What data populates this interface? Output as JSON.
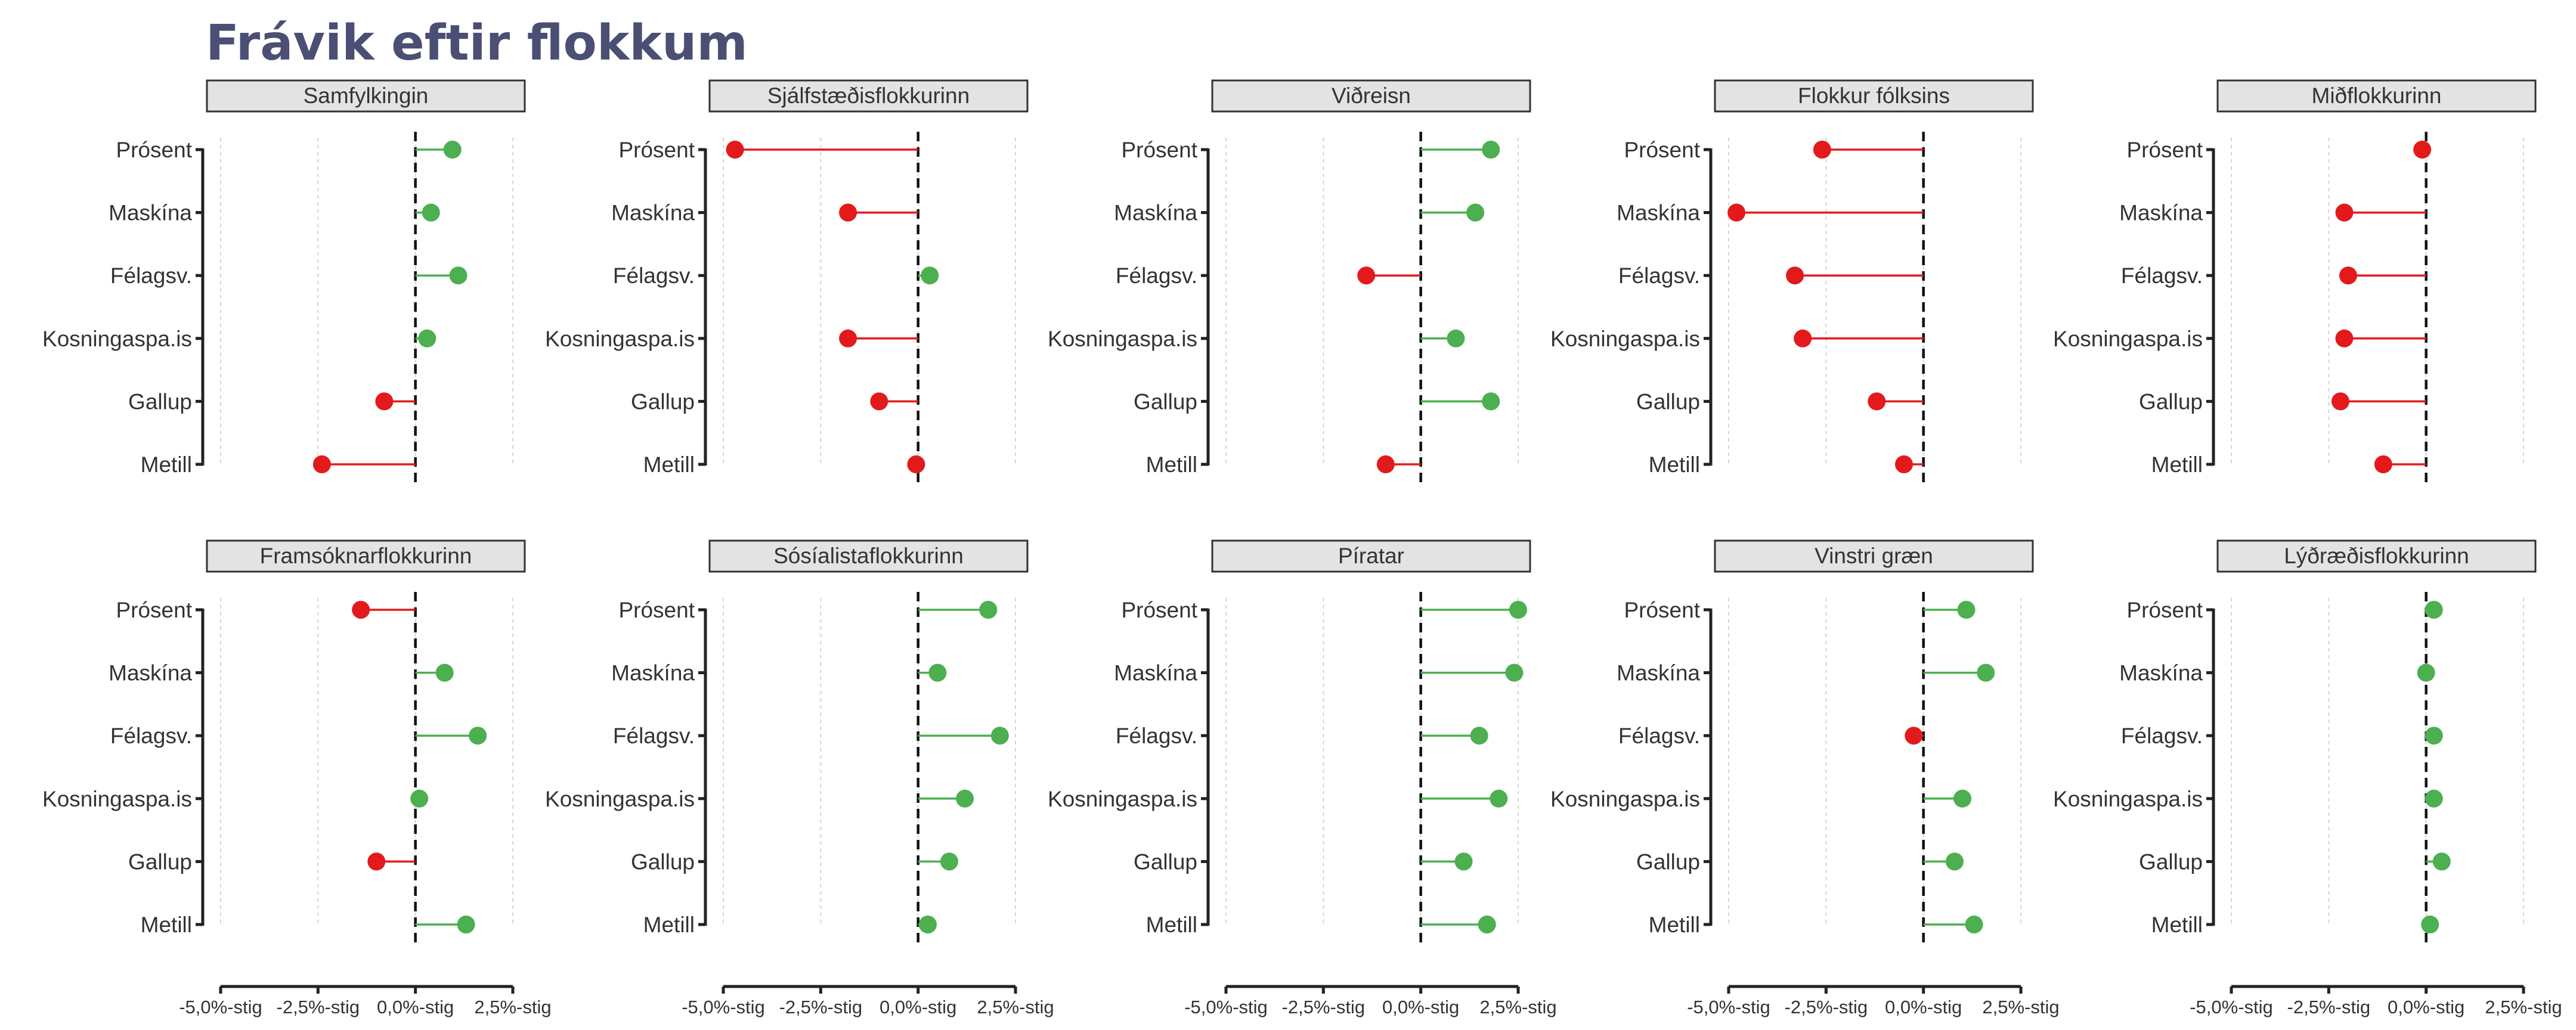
{
  "chart_data": {
    "type": "lollipop",
    "title": "Frávik eftir flokkum",
    "layout": "5 columns x 2 rows of facets",
    "xlim": [
      -5,
      2.5
    ],
    "xticks": [
      -5,
      -2.5,
      0,
      2.5
    ],
    "xtick_labels": [
      "-5,0%-stig",
      "-2,5%-stig",
      "0,0%-stig",
      "2,5%-stig"
    ],
    "categories": [
      "Prósent",
      "Maskína",
      "Félagsv.",
      "Kosningaspa.is",
      "Gallup",
      "Metill"
    ],
    "colors": {
      "positive": "#4caf50",
      "negative": "#e31a1c"
    },
    "grid": "vertical dotted gridlines",
    "facets": [
      {
        "name": "Samfylkingin",
        "values": [
          0.95,
          0.4,
          1.1,
          0.3,
          -0.8,
          -2.4
        ]
      },
      {
        "name": "Sjálfstæðisflokkurinn",
        "values": [
          -4.7,
          -1.8,
          0.3,
          -1.8,
          -1.0,
          -0.05
        ]
      },
      {
        "name": "Viðreisn",
        "values": [
          1.8,
          1.4,
          -1.4,
          0.9,
          1.8,
          -0.9
        ]
      },
      {
        "name": "Flokkur fólksins",
        "values": [
          -2.6,
          -4.8,
          -3.3,
          -3.1,
          -1.2,
          -0.5
        ]
      },
      {
        "name": "Miðflokkurinn",
        "values": [
          -0.1,
          -2.1,
          -2.0,
          -2.1,
          -2.2,
          -1.1
        ]
      },
      {
        "name": "Framsóknarflokkurinn",
        "values": [
          -1.4,
          0.75,
          1.6,
          0.1,
          -1.0,
          1.3
        ]
      },
      {
        "name": "Sósíalistaflokkurinn",
        "values": [
          1.8,
          0.5,
          2.1,
          1.2,
          0.8,
          0.25
        ]
      },
      {
        "name": "Píratar",
        "values": [
          2.5,
          2.4,
          1.5,
          2.0,
          1.1,
          1.7
        ]
      },
      {
        "name": "Vinstri græn",
        "values": [
          1.1,
          1.6,
          -0.25,
          1.0,
          0.8,
          1.3
        ]
      },
      {
        "name": "Lýðræðisflokkurinn",
        "values": [
          0.2,
          0.0,
          0.2,
          0.2,
          0.4,
          0.1
        ]
      }
    ]
  }
}
